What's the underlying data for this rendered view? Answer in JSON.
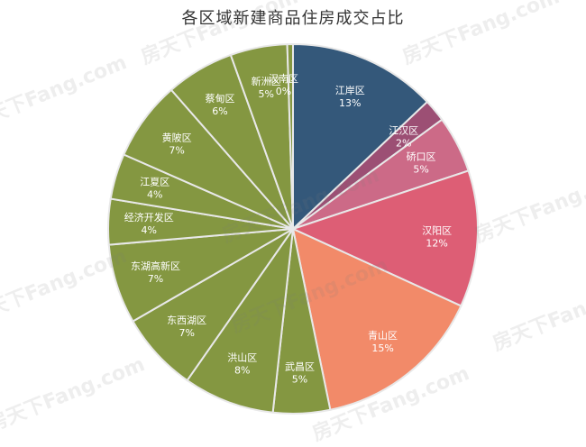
{
  "chart_data": {
    "type": "pie",
    "title": "各区域新建商品住房成交占比",
    "slices": [
      {
        "label": "江岸区",
        "value": 13,
        "value_label": "13%",
        "color": "#34587a"
      },
      {
        "label": "江汉区",
        "value": 2,
        "value_label": "2%",
        "color": "#9c4f74"
      },
      {
        "label": "硚口区",
        "value": 5,
        "value_label": "5%",
        "color": "#cc6a87"
      },
      {
        "label": "汉阳区",
        "value": 12,
        "value_label": "12%",
        "color": "#dd5e75"
      },
      {
        "label": "青山区",
        "value": 15,
        "value_label": "15%",
        "color": "#f28a69"
      },
      {
        "label": "武昌区",
        "value": 5,
        "value_label": "5%",
        "color": "#849741"
      },
      {
        "label": "洪山区",
        "value": 8,
        "value_label": "8%",
        "color": "#849741"
      },
      {
        "label": "东西湖区",
        "value": 7,
        "value_label": "7%",
        "color": "#849741"
      },
      {
        "label": "东湖高新区",
        "value": 7,
        "value_label": "7%",
        "color": "#849741"
      },
      {
        "label": "经济开发区",
        "value": 4,
        "value_label": "4%",
        "color": "#849741"
      },
      {
        "label": "江夏区",
        "value": 4,
        "value_label": "4%",
        "color": "#849741"
      },
      {
        "label": "黄陂区",
        "value": 7,
        "value_label": "7%",
        "color": "#849741"
      },
      {
        "label": "蔡甸区",
        "value": 6,
        "value_label": "6%",
        "color": "#849741"
      },
      {
        "label": "新洲区",
        "value": 5,
        "value_label": "5%",
        "color": "#849741"
      },
      {
        "label": "汉南区",
        "value": 0,
        "value_label": "0%",
        "color": "#849741"
      }
    ]
  },
  "watermark": "房天下Fang.com"
}
